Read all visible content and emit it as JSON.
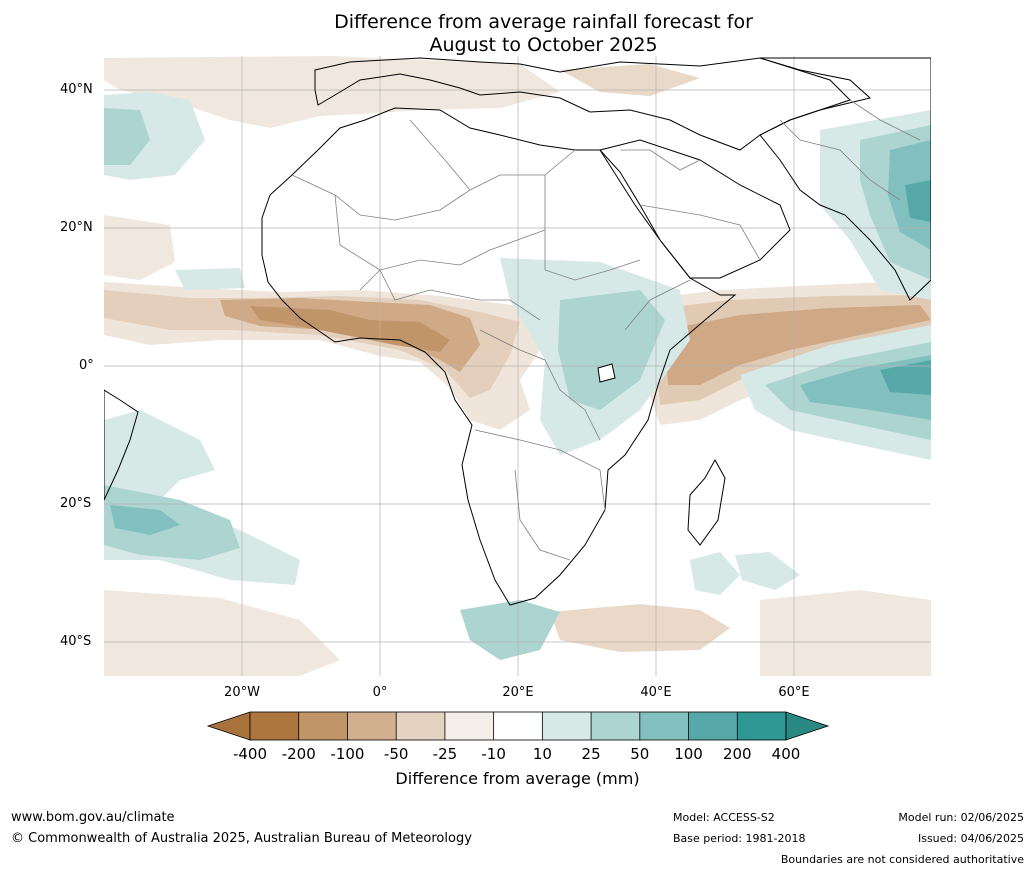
{
  "title": {
    "line1": "Difference from average rainfall forecast for",
    "line2": "August to October 2025"
  },
  "map": {
    "lat_labels": [
      "40°N",
      "20°N",
      "0°",
      "20°S",
      "40°S"
    ],
    "lon_labels": [
      "20°W",
      "0°",
      "20°E",
      "40°E",
      "60°E"
    ],
    "land_fill": "#ffffff",
    "coast_color": "#000000",
    "border_color": "#808080",
    "grid": true
  },
  "colorbar": {
    "title": "Difference from average (mm)",
    "labels": [
      "-400",
      "-200",
      "-100",
      "-50",
      "-25",
      "-10",
      "10",
      "25",
      "50",
      "100",
      "200",
      "400"
    ],
    "colors": [
      "#a8723c",
      "#ac763e",
      "#c0956a",
      "#d2b08f",
      "#e5d3c1",
      "#f4efe8",
      "#ffffff",
      "#d6e9e6",
      "#acd4d1",
      "#82c0bf",
      "#57a9a9",
      "#2f9794",
      "#2a8882"
    ]
  },
  "footer": {
    "url": "www.bom.gov.au/climate",
    "copyright": "© Commonwealth of Australia 2025, Australian Bureau of Meteorology",
    "model": "Model: ACCESS-S2",
    "base_period": "Base period: 1981-2018",
    "model_run": "Model run: 02/06/2025",
    "issued": "Issued: 04/06/2025",
    "disclaimer": "Boundaries are not considered authoritative"
  }
}
